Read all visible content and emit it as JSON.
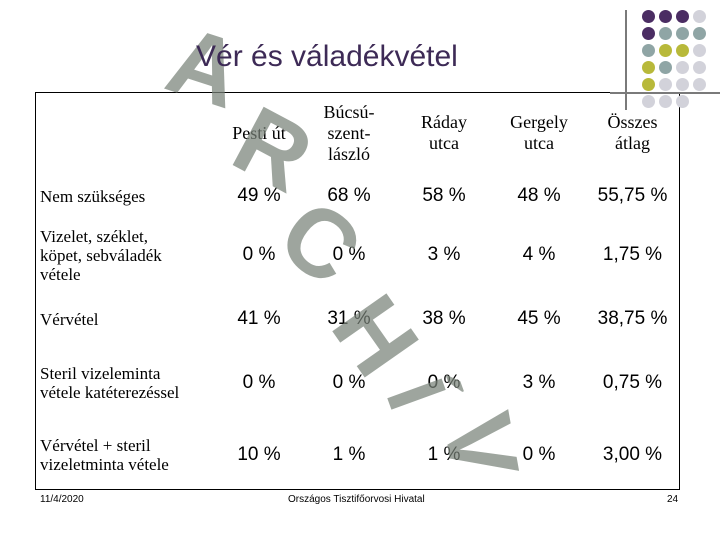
{
  "title": "Vér és váladékvétel",
  "table": {
    "headers": [
      "",
      "Pesti út",
      "Búcsú-szent-lászló",
      "Ráday utca",
      "Gergely utca",
      "Összes átlag"
    ],
    "header_lines": {
      "c1": [
        "Pesti út"
      ],
      "c2": [
        "Búcsú-",
        "szent-",
        "lászló"
      ],
      "c3": [
        "Ráday",
        "utca"
      ],
      "c4": [
        "Gergely",
        "utca"
      ],
      "c5": [
        "Összes",
        "átlag"
      ]
    },
    "rows": [
      {
        "label": [
          "Nem szükséges"
        ],
        "values": [
          "49 %",
          "68 %",
          "58 %",
          "48 %",
          "55,75 %"
        ]
      },
      {
        "label": [
          "Vizelet, széklet,",
          "köpet, sebváladék",
          "vétele"
        ],
        "values": [
          "0 %",
          "0 %",
          "3 %",
          "4 %",
          "1,75 %"
        ]
      },
      {
        "label": [
          "Vérvétel"
        ],
        "values": [
          "41 %",
          "31 %",
          "38 %",
          "45 %",
          "38,75 %"
        ]
      },
      {
        "label": [
          "Steril vizeleminta",
          "vétele katéterezéssel"
        ],
        "values": [
          "0 %",
          "0 %",
          "0 %",
          "3 %",
          "0,75 %"
        ]
      },
      {
        "label": [
          "Vérvétel + steril",
          "vizeletminta vétele"
        ],
        "values": [
          "10 %",
          "1 %",
          "1 %",
          "0 %",
          "3,00 %"
        ]
      }
    ]
  },
  "watermark": [
    "A",
    "R",
    "C",
    "H",
    "Í",
    "V"
  ],
  "footer": {
    "date": "11/4/2020",
    "center": "Országos Tisztifőorvosi Hivatal",
    "page": "24"
  },
  "colors": {
    "title": "#3d2a56",
    "dot_purple": "#4b2d63",
    "dot_teal": "#8fa5a5",
    "dot_olive": "#b8b93a",
    "dot_light": "#d2d2da"
  }
}
